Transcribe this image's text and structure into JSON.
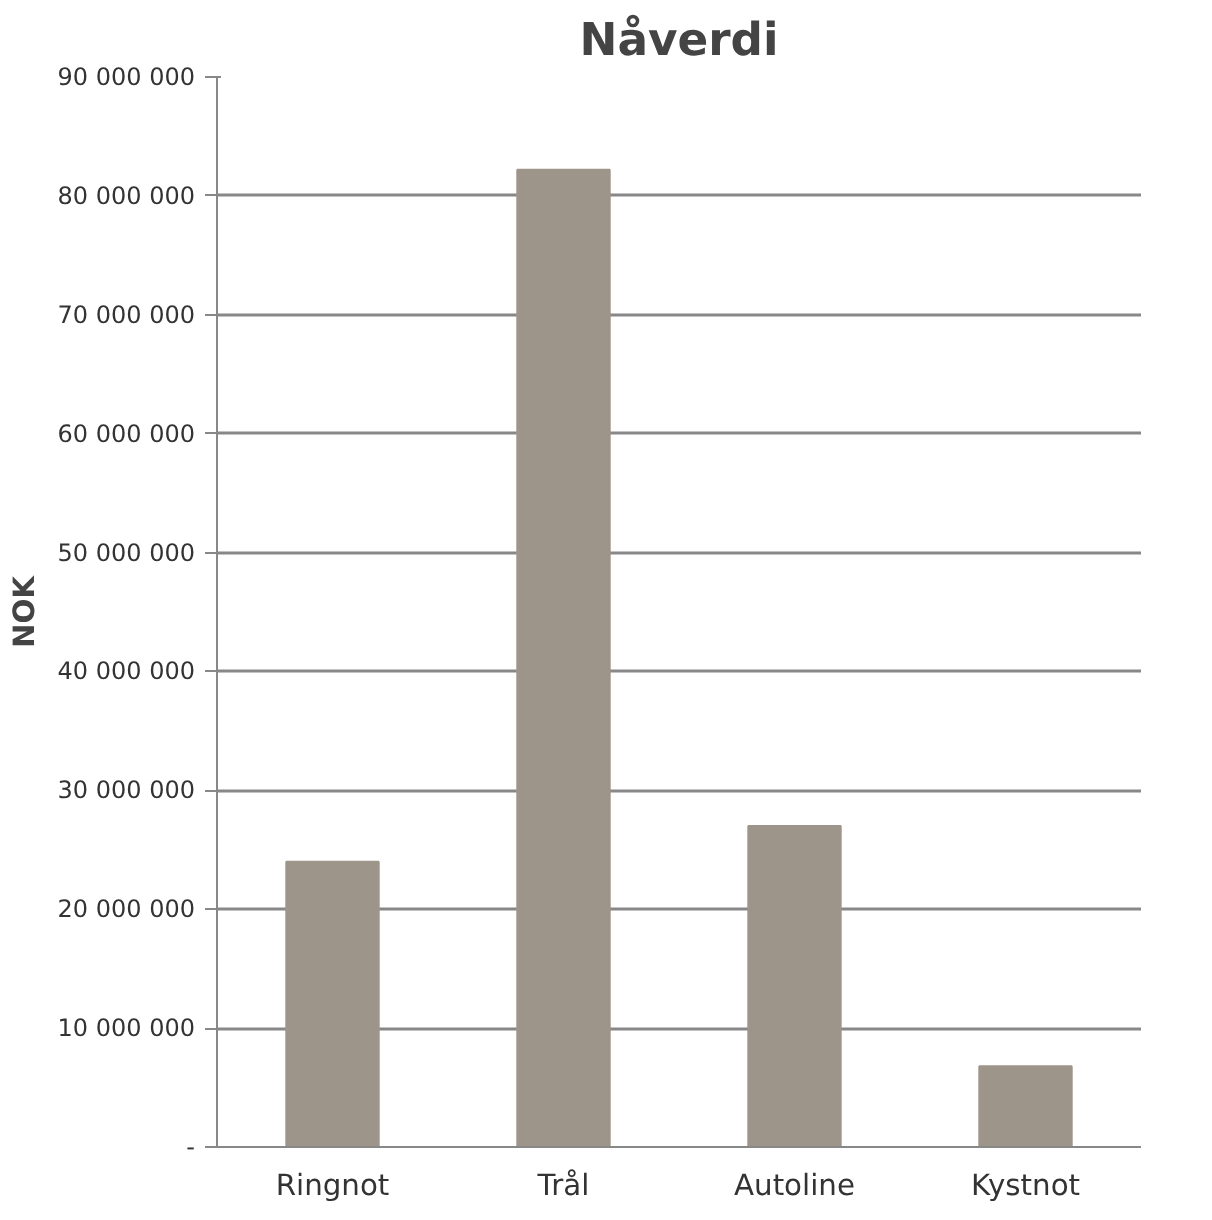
{
  "chart_data": {
    "type": "bar",
    "title": "Nåverdi",
    "ylabel": "NOK",
    "categories": [
      "Ringnot",
      "Trål",
      "Autoline",
      "Kystnot"
    ],
    "values": [
      24000000,
      82200000,
      27000000,
      6800000
    ],
    "color": "#9e958a",
    "ylim": [
      0,
      90000000
    ],
    "yticks": [
      {
        "value": 0,
        "label": "-"
      },
      {
        "value": 10000000,
        "label": "10 000 000"
      },
      {
        "value": 20000000,
        "label": "20 000 000"
      },
      {
        "value": 30000000,
        "label": "30 000 000"
      },
      {
        "value": 40000000,
        "label": "40 000 000"
      },
      {
        "value": 50000000,
        "label": "50 000 000"
      },
      {
        "value": 60000000,
        "label": "60 000 000"
      },
      {
        "value": 70000000,
        "label": "70 000 000"
      },
      {
        "value": 80000000,
        "label": "80 000 000"
      },
      {
        "value": 90000000,
        "label": "90 000 000"
      }
    ],
    "grid": "y"
  }
}
